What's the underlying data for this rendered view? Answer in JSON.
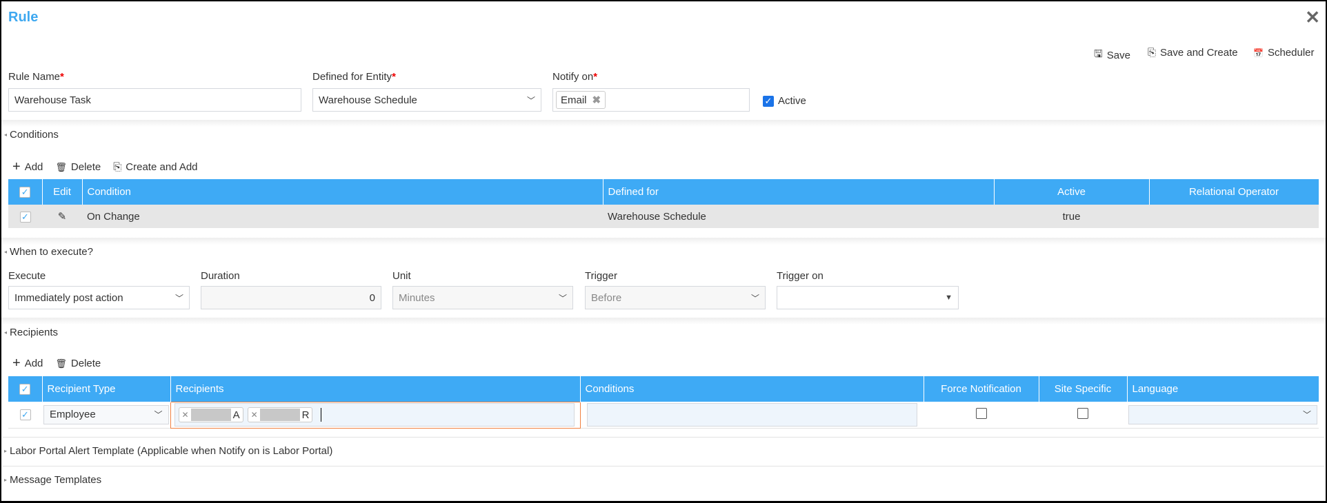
{
  "dialog": {
    "title": "Rule",
    "close_icon": "close-icon"
  },
  "toolbar": {
    "save": "Save",
    "save_and_create": "Save and Create",
    "scheduler": "Scheduler"
  },
  "form": {
    "rule_name": {
      "label": "Rule Name",
      "required": "*",
      "value": "Warehouse Task"
    },
    "entity": {
      "label": "Defined for Entity",
      "required": "*",
      "value": "Warehouse Schedule"
    },
    "notify": {
      "label": "Notify on",
      "required": "*",
      "chips": [
        "Email"
      ]
    },
    "active": {
      "label": "Active",
      "checked": true
    }
  },
  "conditions": {
    "title": "Conditions",
    "actions": {
      "add": "Add",
      "delete": "Delete",
      "create_and_add": "Create and Add"
    },
    "columns": [
      "Edit",
      "Condition",
      "Defined for",
      "Active",
      "Relational Operator"
    ],
    "rows": [
      {
        "checked": true,
        "condition": "On Change",
        "defined_for": "Warehouse Schedule",
        "active": "true",
        "relational_operator": ""
      }
    ]
  },
  "execute": {
    "title": "When to execute?",
    "execute": {
      "label": "Execute",
      "value": "Immediately post action"
    },
    "duration": {
      "label": "Duration",
      "value": "0"
    },
    "unit": {
      "label": "Unit",
      "value": "Minutes"
    },
    "trigger": {
      "label": "Trigger",
      "value": "Before"
    },
    "trigger_on": {
      "label": "Trigger on",
      "value": ""
    }
  },
  "recipients": {
    "title": "Recipients",
    "actions": {
      "add": "Add",
      "delete": "Delete"
    },
    "columns": [
      "Recipient Type",
      "Recipients",
      "Conditions",
      "Force Notification",
      "Site Specific",
      "Language"
    ],
    "rows": [
      {
        "checked": true,
        "type": "Employee",
        "recipients": [
          "A",
          "R"
        ],
        "conditions": "",
        "force": false,
        "site": false,
        "language": ""
      }
    ]
  },
  "sections": {
    "labor_portal": "Labor Portal Alert Template (Applicable when Notify on is Labor Portal)",
    "message_templates": "Message Templates"
  },
  "colors": {
    "accent": "#3eaaf5",
    "required": "#e00000",
    "focus": "#f08040"
  }
}
